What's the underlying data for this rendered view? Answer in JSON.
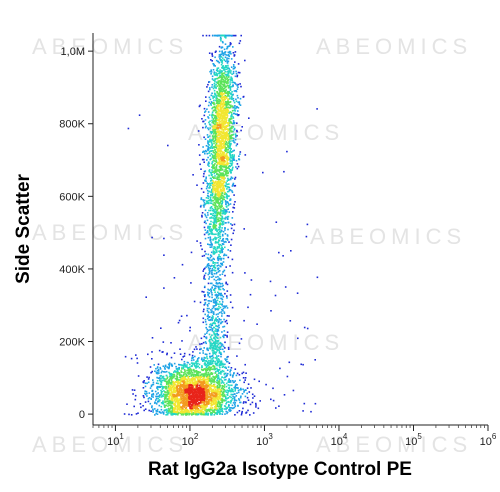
{
  "chart_data": {
    "type": "scatter",
    "subtype": "flow-cytometry-density-dot-plot",
    "xlabel": "Rat IgG2a Isotype Control PE",
    "ylabel": "Side Scatter",
    "x_scale": "log",
    "x_range": [
      5,
      1000000
    ],
    "y_range": [
      -30000,
      1050000
    ],
    "x_ticks": [
      {
        "value": 10,
        "base": "10",
        "exp": "1"
      },
      {
        "value": 100,
        "base": "10",
        "exp": "2"
      },
      {
        "value": 1000,
        "base": "10",
        "exp": "3"
      },
      {
        "value": 10000,
        "base": "10",
        "exp": "4"
      },
      {
        "value": 100000,
        "base": "10",
        "exp": "5"
      },
      {
        "value": 1000000,
        "base": "10",
        "exp": "6"
      }
    ],
    "y_ticks": [
      {
        "value": 0,
        "label": "0"
      },
      {
        "value": 200000,
        "label": "200K"
      },
      {
        "value": 400000,
        "label": "400K"
      },
      {
        "value": 600000,
        "label": "600K"
      },
      {
        "value": 800000,
        "label": "800K"
      },
      {
        "value": 1000000,
        "label": "1,0M"
      }
    ],
    "populations": [
      {
        "name": "low-SSC cluster",
        "x_center": 110,
        "y_center": 60000,
        "x_log_spread": 0.28,
        "y_spread": 38000,
        "count": 2600
      },
      {
        "name": "high-SSC cluster",
        "x_center": 250,
        "y_center": 770000,
        "x_log_spread": 0.1,
        "y_spread": 130000,
        "count": 2200
      }
    ],
    "density_colormap": [
      "#1f2bd6",
      "#1fa3e6",
      "#25d7c4",
      "#5be35a",
      "#f2e631",
      "#f39b1f",
      "#e8241a"
    ],
    "grid": false,
    "legend": "none"
  },
  "watermark": {
    "text": "ABEOMICS"
  }
}
